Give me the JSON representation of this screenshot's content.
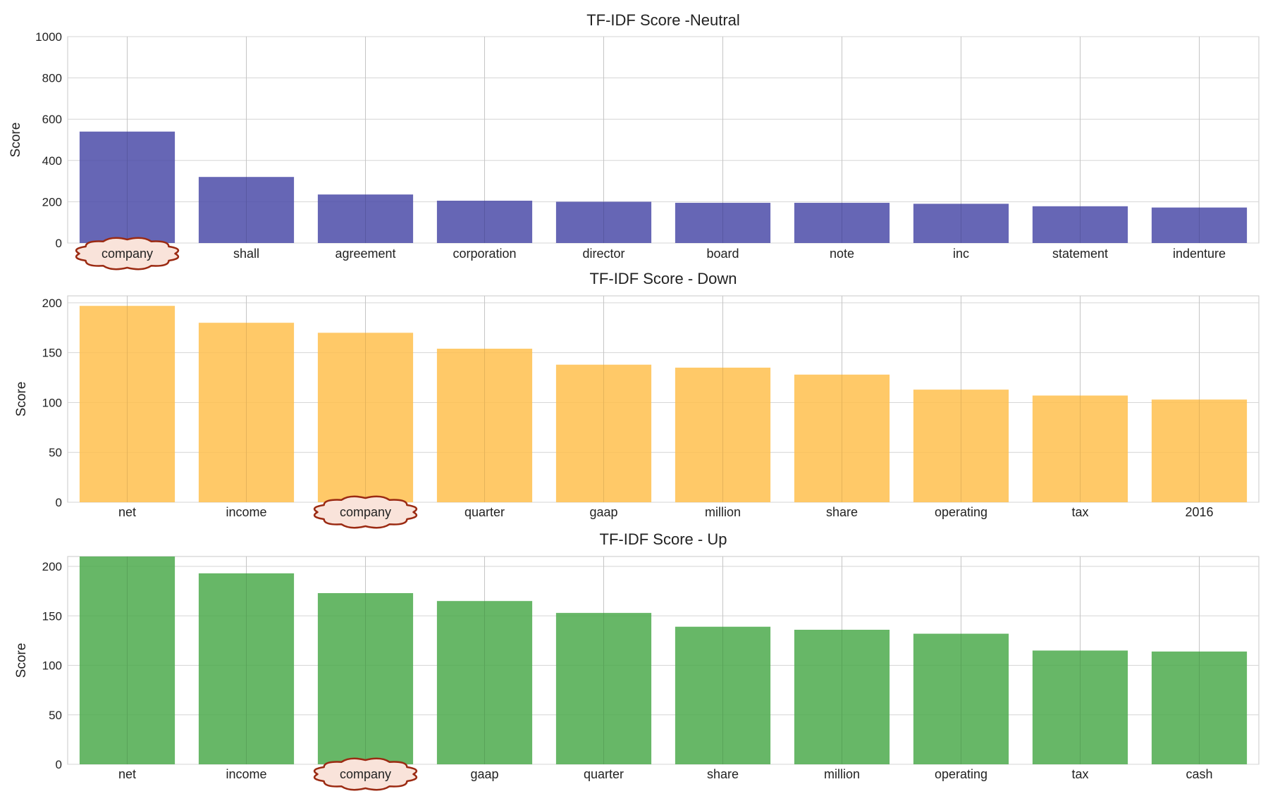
{
  "colors": {
    "grid": "#d6d6d6",
    "frame": "#c8c8c8",
    "text": "#222222",
    "cloud_fill": "#f9e3da",
    "cloud_stroke": "#9b2a12"
  },
  "chart_data": [
    {
      "type": "bar",
      "title": "TF-IDF Score -Neutral",
      "xlabel": "",
      "ylabel": "Score",
      "ylim": [
        0,
        1000
      ],
      "yticks": [
        0,
        200,
        400,
        600,
        800,
        1000
      ],
      "grid": true,
      "color": "#4b4ba8",
      "categories": [
        "company",
        "shall",
        "agreement",
        "corporation",
        "director",
        "board",
        "note",
        "inc",
        "statement",
        "indenture"
      ],
      "values": [
        540,
        320,
        235,
        205,
        200,
        195,
        195,
        190,
        178,
        172
      ],
      "highlighted_category": "company"
    },
    {
      "type": "bar",
      "title": "TF-IDF Score - Down",
      "xlabel": "",
      "ylabel": "Score",
      "ylim": [
        0,
        207
      ],
      "yticks": [
        0,
        50,
        100,
        150,
        200
      ],
      "grid": true,
      "color": "#ffbf4d",
      "categories": [
        "net",
        "income",
        "company",
        "quarter",
        "gaap",
        "million",
        "share",
        "operating",
        "tax",
        "2016"
      ],
      "values": [
        197,
        180,
        170,
        154,
        138,
        135,
        128,
        113,
        107,
        103
      ],
      "highlighted_category": "company"
    },
    {
      "type": "bar",
      "title": "TF-IDF Score - Up",
      "xlabel": "",
      "ylabel": "Score",
      "ylim": [
        0,
        210
      ],
      "yticks": [
        0,
        50,
        100,
        150,
        200
      ],
      "grid": true,
      "color": "#4caa4c",
      "categories": [
        "net",
        "income",
        "company",
        "gaap",
        "quarter",
        "share",
        "million",
        "operating",
        "tax",
        "cash"
      ],
      "values": [
        210,
        193,
        173,
        165,
        153,
        139,
        136,
        132,
        115,
        114
      ],
      "highlighted_category": "company"
    }
  ]
}
